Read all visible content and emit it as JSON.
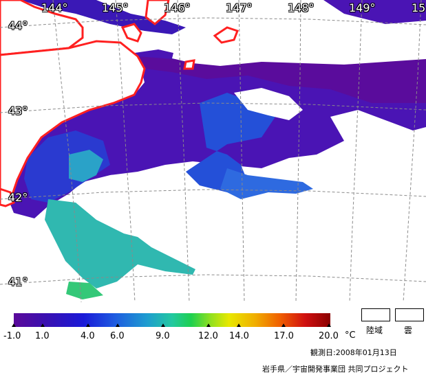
{
  "map": {
    "longitude_labels": [
      "144°",
      "145°",
      "146°",
      "147°",
      "148°",
      "149°",
      "15"
    ],
    "latitude_labels": [
      "44°",
      "43°",
      "42°",
      "41°"
    ],
    "coastline_color": "#ff2020",
    "land_color": "#ffffff",
    "cloud_color": "#ffffff"
  },
  "colorbar": {
    "tick_labels": [
      "-1.0",
      "1.0",
      "4.0",
      "6.0",
      "9.0",
      "12.0",
      "14.0",
      "17.0",
      "20.0"
    ],
    "unit": "°C",
    "range": [
      -1.0,
      20.0
    ]
  },
  "legend": {
    "land_label": "陸域",
    "cloud_label": "雲"
  },
  "footer": {
    "date": "観測日:2008年01月13日",
    "credit": "岩手県／宇宙開発事業団  共同プロジェクト"
  }
}
